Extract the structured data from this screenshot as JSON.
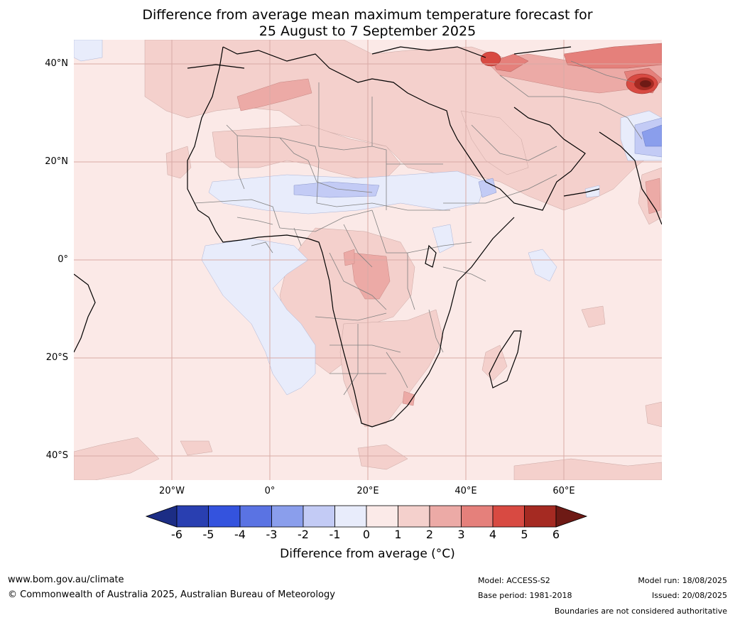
{
  "title": {
    "line1": "Difference from average mean maximum temperature forecast for",
    "line2": "25 August to 7 September 2025"
  },
  "map": {
    "region": "Africa",
    "lat_ticks": [
      "40°N",
      "20°N",
      "0°",
      "20°S",
      "40°S"
    ],
    "lon_ticks": [
      "20°W",
      "0°",
      "20°E",
      "40°E",
      "60°E"
    ],
    "colors": {
      "ocean_background": "#fbe9e7",
      "band_0_1": "#fbeae8",
      "band_1_2": "#f4d0cc",
      "band_2_3": "#ecaaa6",
      "band_3_4": "#e5807b",
      "band_5_6": "#a52a22",
      "band_m1_0": "#e8ecfb",
      "band_m2_m1": "#c3cbf5",
      "band_m3_m2": "#8a9eec",
      "coastline": "#000000",
      "borders": "#808080",
      "gridlines": "#d9aaa6"
    }
  },
  "colorbar": {
    "ticks": [
      "-6",
      "-5",
      "-4",
      "-3",
      "-2",
      "-1",
      "0",
      "1",
      "2",
      "3",
      "4",
      "5",
      "6"
    ],
    "colors": [
      "#1c2d85",
      "#293fb1",
      "#3453de",
      "#5a73e3",
      "#8a9eec",
      "#c3cbf5",
      "#e8ecfb",
      "#fbeae8",
      "#f4d0cc",
      "#ecaaa6",
      "#e5807b",
      "#d84a42",
      "#a52a22",
      "#6e1a15"
    ],
    "label": "Difference from average (°C)"
  },
  "footer": {
    "website": "www.bom.gov.au/climate",
    "copyright": "© Commonwealth of Australia 2025, Australian Bureau of Meteorology",
    "model": "Model: ACCESS-S2",
    "base_period": "Base period: 1981-2018",
    "model_run": "Model run: 18/08/2025",
    "issued": "Issued: 20/08/2025",
    "disclaimer": "Boundaries are not considered authoritative"
  }
}
